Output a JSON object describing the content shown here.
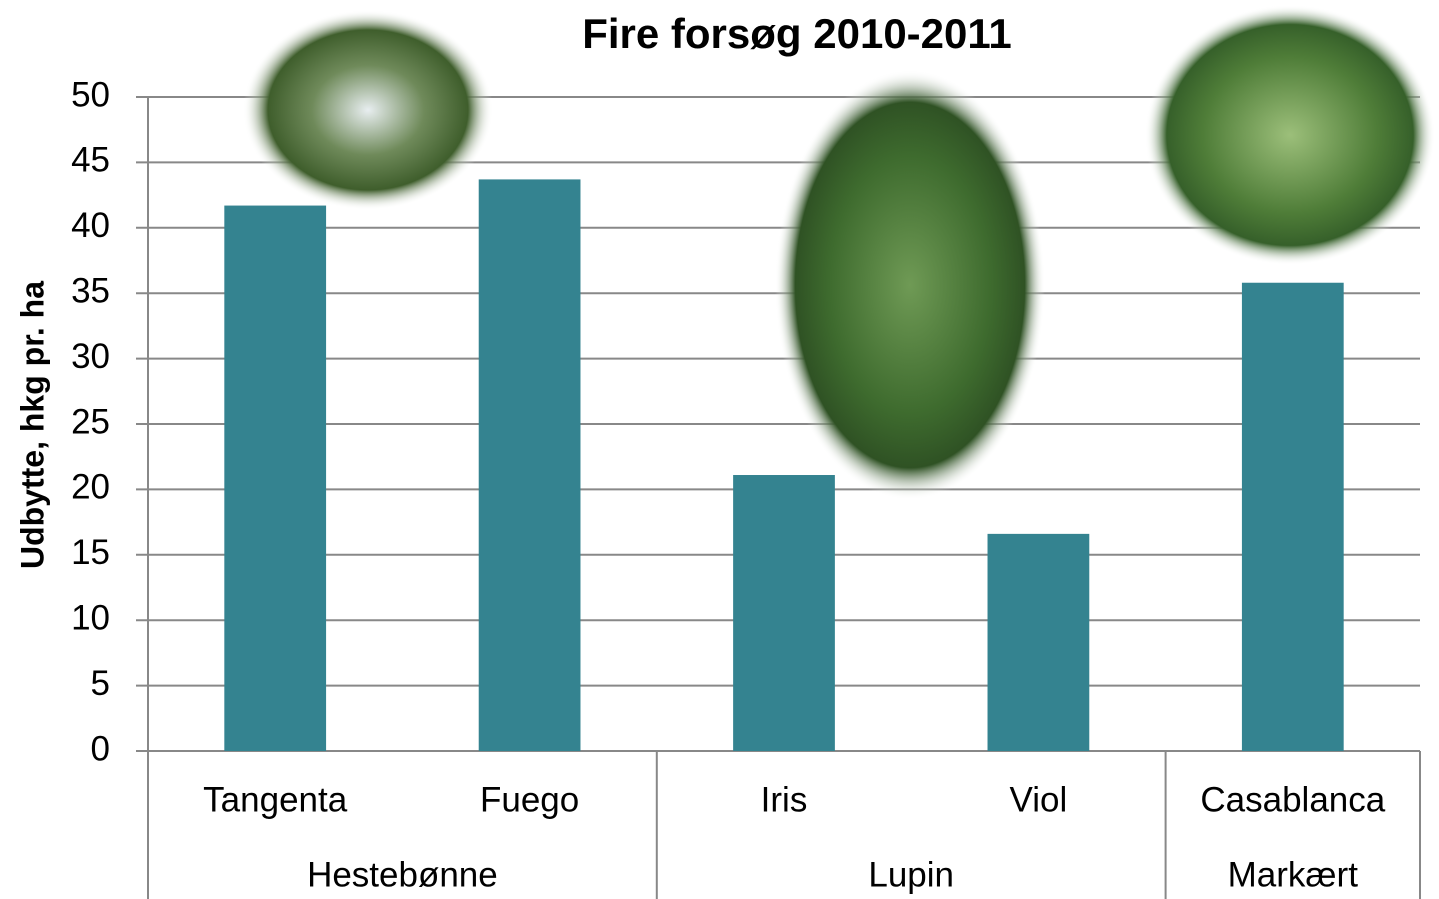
{
  "chart_data": {
    "type": "bar",
    "title": "Fire forsøg 2010-2011",
    "y_label": "Udbytte, hkg pr. ha",
    "groups": [
      {
        "name": "Hestebønne",
        "categories": [
          "Tangenta",
          "Fuego"
        ],
        "values": [
          41.7,
          43.7
        ]
      },
      {
        "name": "Lupin",
        "categories": [
          "Iris",
          "Viol"
        ],
        "values": [
          21.1,
          16.6
        ]
      },
      {
        "name": "Markært",
        "categories": [
          "Casablanca"
        ],
        "values": [
          35.8
        ]
      }
    ],
    "color": "#348390",
    "ylim": [
      0,
      50
    ],
    "yticks": [
      0,
      5,
      10,
      15,
      20,
      25,
      30,
      35,
      40,
      45,
      50
    ],
    "grid": true
  }
}
